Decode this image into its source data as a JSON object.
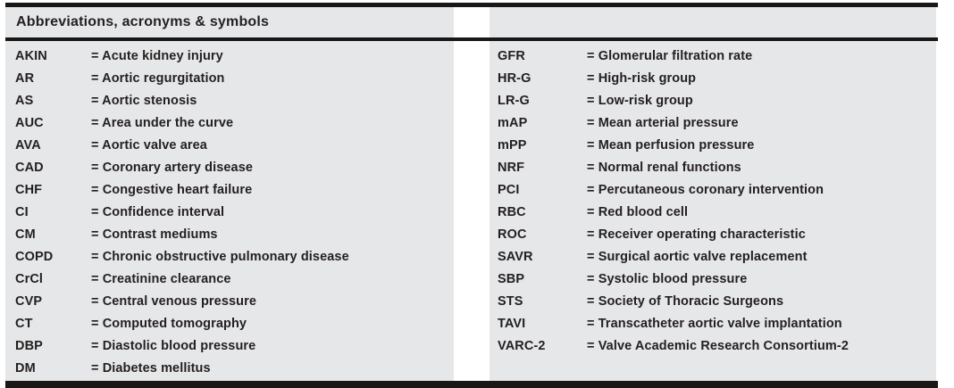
{
  "page": {
    "title": "Abbreviations, acronyms & symbols",
    "equals_sign": "=",
    "colors": {
      "panel_bg": "#e6e7e8",
      "rule": "#1a1817",
      "text": "#231f20"
    },
    "columns": {
      "left": [
        {
          "abbr": "AKIN",
          "meaning": "Acute kidney injury"
        },
        {
          "abbr": "AR",
          "meaning": "Aortic regurgitation"
        },
        {
          "abbr": "AS",
          "meaning": "Aortic stenosis"
        },
        {
          "abbr": "AUC",
          "meaning": "Area under the curve"
        },
        {
          "abbr": "AVA",
          "meaning": "Aortic valve area"
        },
        {
          "abbr": "CAD",
          "meaning": "Coronary artery disease"
        },
        {
          "abbr": "CHF",
          "meaning": "Congestive heart failure"
        },
        {
          "abbr": "CI",
          "meaning": "Confidence interval"
        },
        {
          "abbr": "CM",
          "meaning": "Contrast mediums"
        },
        {
          "abbr": "COPD",
          "meaning": "Chronic obstructive pulmonary disease"
        },
        {
          "abbr": "CrCl",
          "meaning": "Creatinine clearance"
        },
        {
          "abbr": "CVP",
          "meaning": "Central venous pressure"
        },
        {
          "abbr": "CT",
          "meaning": "Computed tomography"
        },
        {
          "abbr": "DBP",
          "meaning": "Diastolic blood pressure"
        },
        {
          "abbr": "DM",
          "meaning": "Diabetes mellitus"
        }
      ],
      "right": [
        {
          "abbr": "GFR",
          "meaning": "Glomerular filtration rate"
        },
        {
          "abbr": "HR-G",
          "meaning": "High-risk group"
        },
        {
          "abbr": "LR-G",
          "meaning": "Low-risk group"
        },
        {
          "abbr": "mAP",
          "meaning": "Mean arterial pressure"
        },
        {
          "abbr": "mPP",
          "meaning": "Mean perfusion pressure"
        },
        {
          "abbr": "NRF",
          "meaning": "Normal renal functions"
        },
        {
          "abbr": "PCI",
          "meaning": "Percutaneous coronary intervention"
        },
        {
          "abbr": "RBC",
          "meaning": "Red blood cell"
        },
        {
          "abbr": "ROC",
          "meaning": "Receiver operating characteristic"
        },
        {
          "abbr": "SAVR",
          "meaning": "Surgical aortic valve replacement"
        },
        {
          "abbr": "SBP",
          "meaning": "Systolic blood pressure"
        },
        {
          "abbr": "STS",
          "meaning": "Society of Thoracic Surgeons"
        },
        {
          "abbr": "TAVI",
          "meaning": "Transcatheter aortic valve implantation"
        },
        {
          "abbr": "VARC-2",
          "meaning": "Valve Academic Research Consortium-2"
        }
      ]
    }
  }
}
